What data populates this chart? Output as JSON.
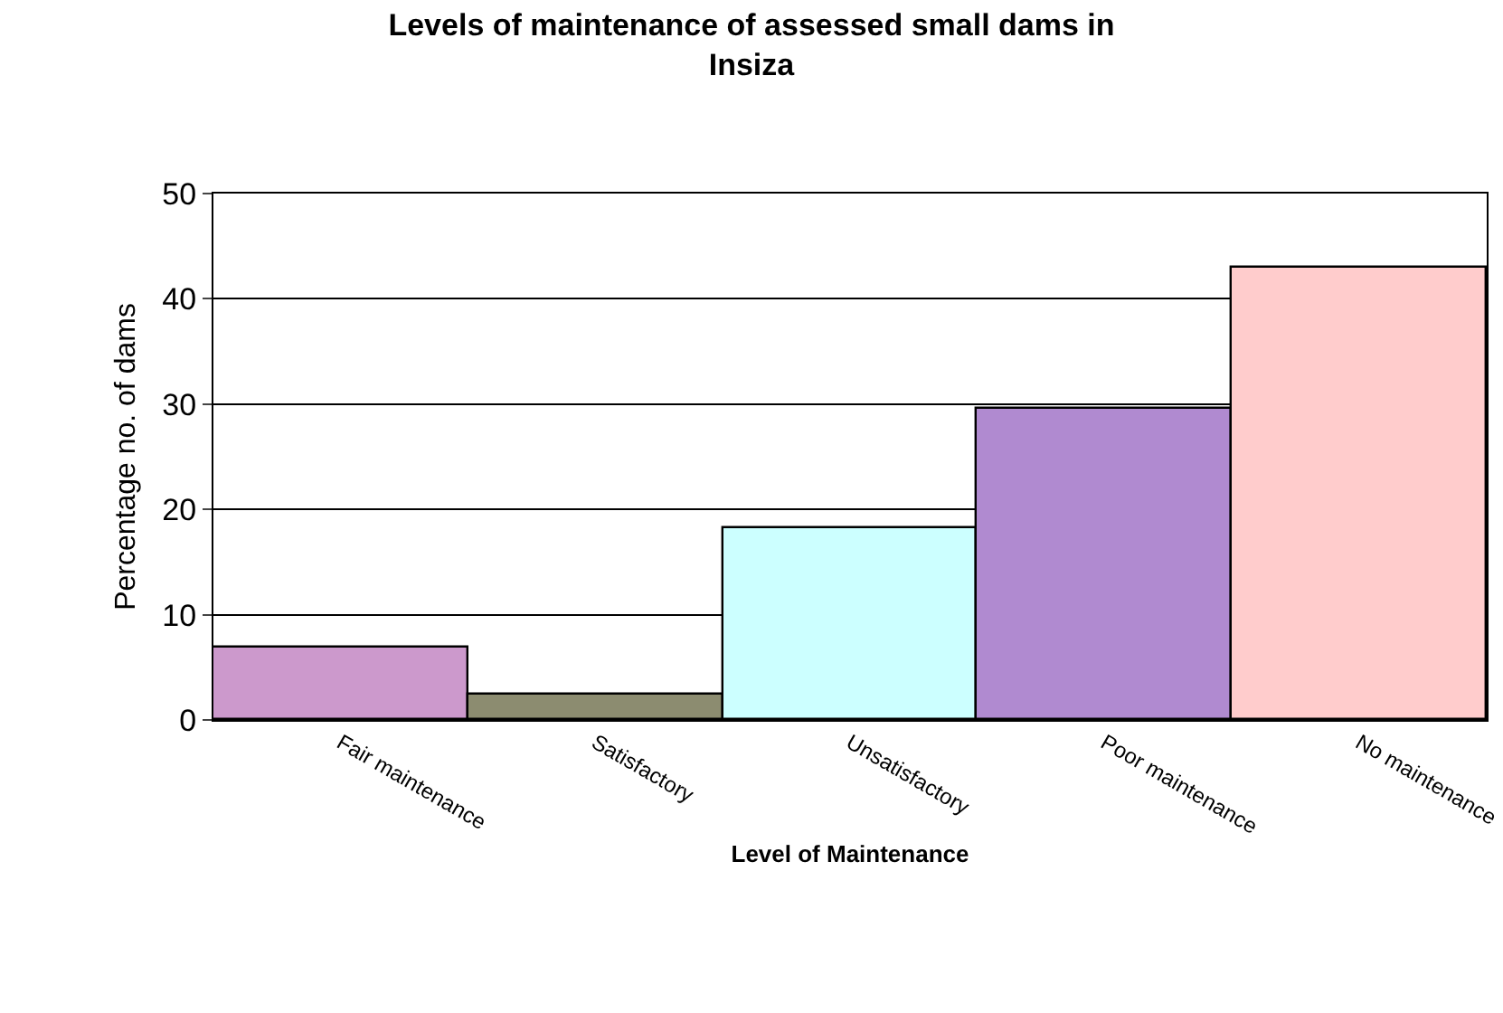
{
  "chart_data": {
    "type": "bar",
    "title": "Levels of maintenance of assessed small dams in Insiza",
    "xlabel": "Level of Maintenance",
    "ylabel": "Percentage no. of dams",
    "categories": [
      "Fair maintenance",
      "Satisfactory",
      "Unsatisfactory",
      "Poor maintenance",
      "No maintenance"
    ],
    "values": [
      6.8,
      2.4,
      18.2,
      29.6,
      43.0
    ],
    "colors": [
      "#cc99cc",
      "#8c8c70",
      "#ccffff",
      "#b08ad0",
      "#ffcccc"
    ],
    "ylim": [
      0,
      50
    ],
    "yticks": [
      0,
      10,
      20,
      30,
      40,
      50
    ],
    "grid": "y"
  }
}
